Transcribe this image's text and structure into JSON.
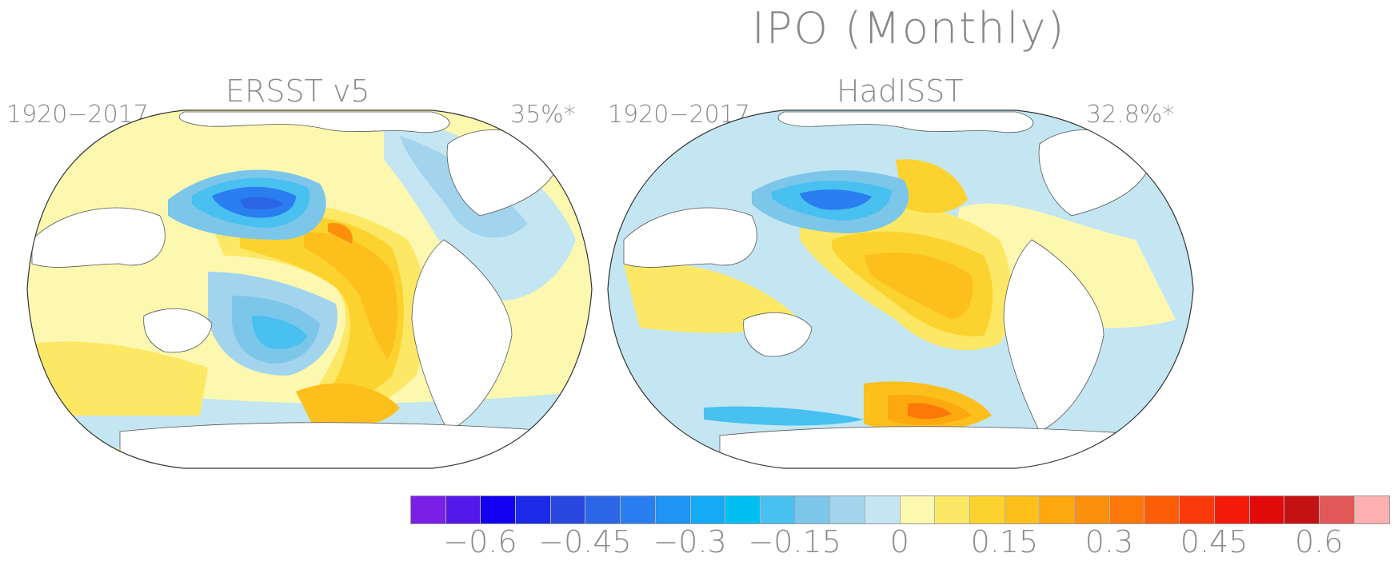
{
  "figure": {
    "title": "IPO (Monthly)",
    "panels": [
      {
        "dataset": "ERSST v5",
        "period": "1920−2017",
        "variance": "35%*"
      },
      {
        "dataset": "HadISST",
        "period": "1920−2017",
        "variance": "32.8%*"
      }
    ]
  },
  "colorbar": {
    "colors": [
      "#7a1fe6",
      "#5418e8",
      "#1200f0",
      "#1a2ae6",
      "#2848e0",
      "#2a66e6",
      "#2a7ef0",
      "#1f94f5",
      "#14aaf5",
      "#00c0f2",
      "#48c0f0",
      "#7cc6ea",
      "#a2d4ee",
      "#c4e6f2",
      "#fdf8b0",
      "#fde866",
      "#fcd22e",
      "#fcbf1c",
      "#fca80e",
      "#fc900c",
      "#fc7808",
      "#fc5e08",
      "#fa3a0a",
      "#f41a0a",
      "#e00a0a",
      "#c41212",
      "#e05858",
      "#fcb0b0"
    ],
    "tick_labels": [
      "−0.6",
      "−0.45",
      "−0.3",
      "−0.15",
      "0",
      "0.15",
      "0.3",
      "0.45",
      "0.6"
    ]
  }
}
